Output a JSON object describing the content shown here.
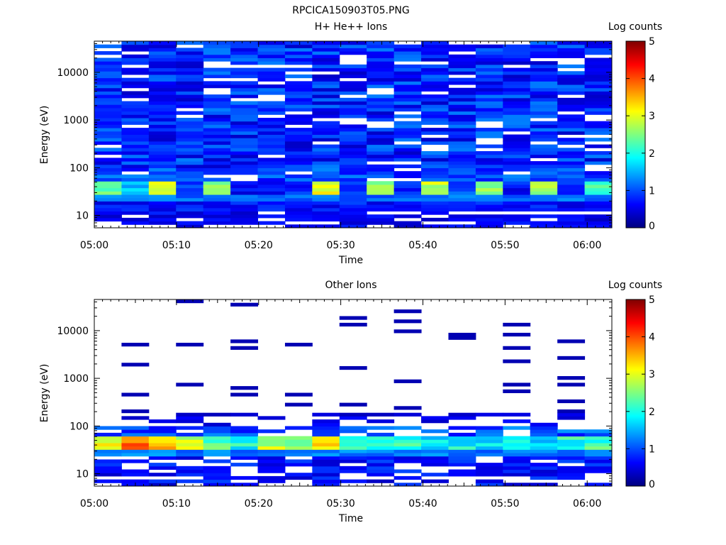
{
  "figure_title": "RPCICA150903T05.PNG",
  "chart_data": [
    {
      "type": "heatmap",
      "title": "H+ He++ Ions",
      "xlabel": "Time",
      "ylabel": "Energy (eV)",
      "x_ticks": [
        "05:00",
        "05:10",
        "05:20",
        "05:30",
        "05:40",
        "05:50",
        "06:00"
      ],
      "xlim": [
        "05:00",
        "06:03"
      ],
      "y_scale": "log",
      "y_ticks": [
        10,
        100,
        1000,
        10000
      ],
      "ylim": [
        5.5,
        45000
      ],
      "colorbar": {
        "label": "Log counts",
        "range": [
          0,
          5
        ],
        "ticks": [
          0,
          1,
          2,
          3,
          4,
          5
        ]
      },
      "profile": "dense",
      "columns": 19,
      "low_band": [
        2.6,
        1.9,
        3.2,
        1.2,
        2.8,
        1.0,
        0.9,
        1.1,
        3.4,
        1.3,
        2.9,
        1.1,
        3.1,
        1.2,
        2.8,
        1.0,
        2.9,
        1.1,
        2.4
      ]
    },
    {
      "type": "heatmap",
      "title": "Other Ions",
      "xlabel": "Time",
      "ylabel": "Energy (eV)",
      "x_ticks": [
        "05:00",
        "05:10",
        "05:20",
        "05:30",
        "05:40",
        "05:50",
        "06:00"
      ],
      "xlim": [
        "05:00",
        "06:03"
      ],
      "y_scale": "log",
      "y_ticks": [
        10,
        100,
        1000,
        10000
      ],
      "ylim": [
        5.5,
        45000
      ],
      "colorbar": {
        "label": "Log counts",
        "range": [
          0,
          5
        ],
        "ticks": [
          0,
          1,
          2,
          3,
          4,
          5
        ]
      },
      "profile": "sparse",
      "columns": 19,
      "low_band": [
        3.6,
        4.3,
        4.0,
        3.3,
        2.6,
        2.4,
        3.2,
        2.7,
        3.6,
        2.5,
        2.5,
        2.4,
        2.2,
        2.3,
        2.3,
        2.4,
        2.2,
        2.5,
        2.6
      ]
    }
  ]
}
